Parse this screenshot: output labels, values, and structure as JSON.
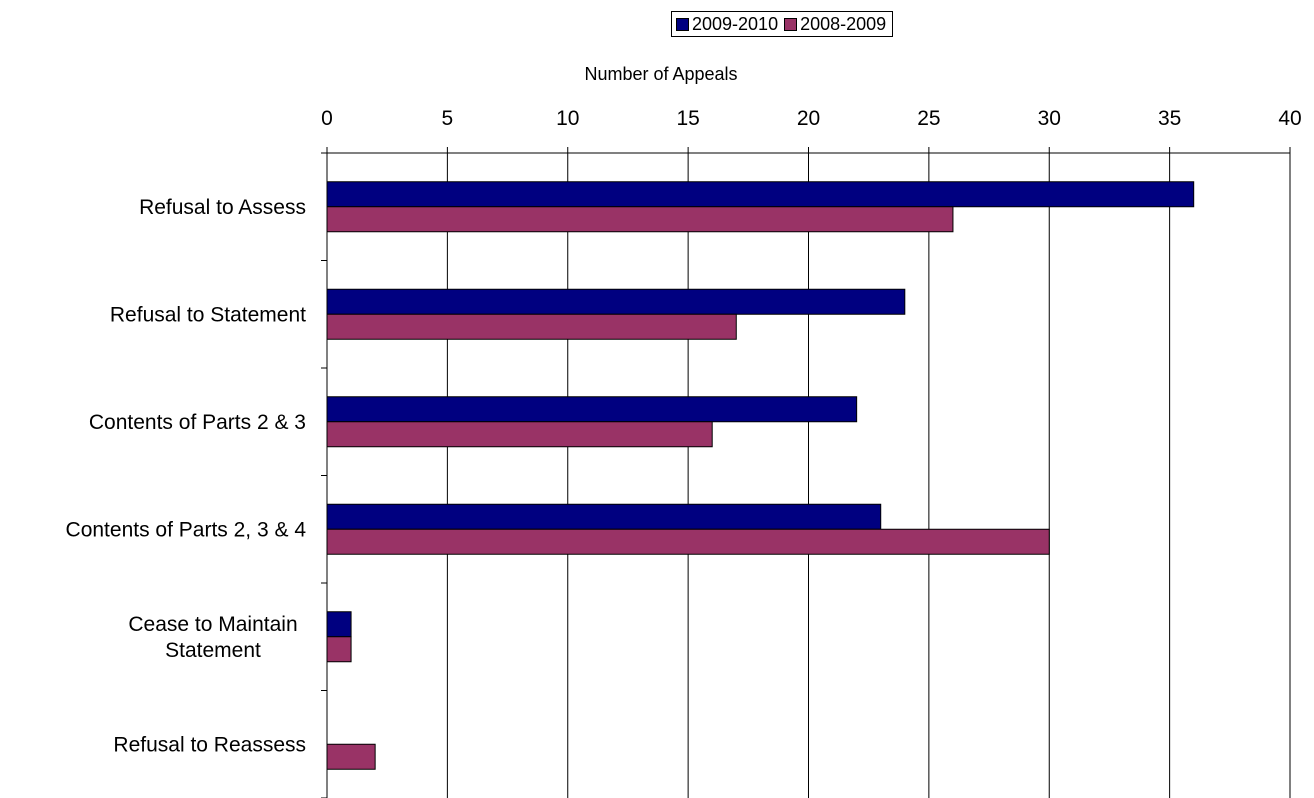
{
  "chart_data": {
    "type": "bar",
    "orientation": "horizontal",
    "xlabel": "Number of Appeals",
    "xlim": [
      0,
      40
    ],
    "xticks": [
      "0",
      "5",
      "10",
      "15",
      "20",
      "25",
      "30",
      "35",
      "40"
    ],
    "grid": true,
    "legend_position": "top",
    "categories": [
      "Refusal to Assess",
      "Refusal to Statement",
      "Contents of Parts 2 & 3",
      "Contents of Parts 2, 3 & 4",
      "Cease to Maintain Statement",
      "Refusal to Reassess"
    ],
    "category_lines": [
      [
        "Refusal to Assess"
      ],
      [
        "Refusal to Statement"
      ],
      [
        "Contents of Parts 2 & 3"
      ],
      [
        "Contents of Parts 2, 3 & 4"
      ],
      [
        "Cease to Maintain",
        "Statement"
      ],
      [
        "Refusal to Reassess"
      ]
    ],
    "series": [
      {
        "name": "2009-2010",
        "color": "#000080",
        "values": [
          36,
          24,
          22,
          23,
          1,
          0
        ]
      },
      {
        "name": "2008-2009",
        "color": "#993366",
        "values": [
          26,
          17,
          16,
          30,
          1,
          2
        ]
      }
    ]
  }
}
